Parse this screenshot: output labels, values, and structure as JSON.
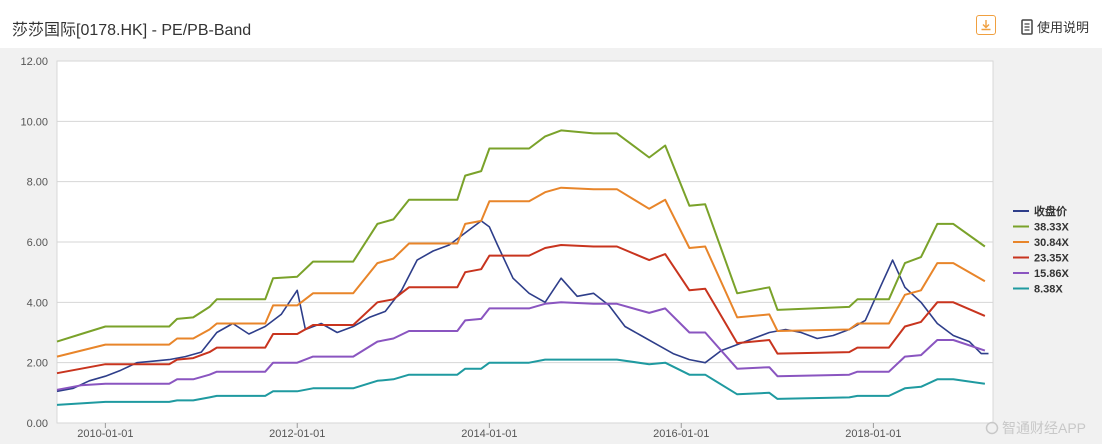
{
  "header": {
    "title": "莎莎国际[0178.HK] - PE/PB-Band",
    "help_label": "使用说明"
  },
  "watermark": "智通财经APP",
  "icons": {
    "download": "download-icon",
    "help": "document-icon"
  },
  "chart_data": {
    "type": "line",
    "title": "",
    "xlabel": "",
    "ylabel": "",
    "ylim": [
      0,
      12
    ],
    "yticks": [
      "0.00",
      "2.00",
      "4.00",
      "6.00",
      "8.00",
      "10.00",
      "12.00"
    ],
    "xrange": [
      "2009-07-01",
      "2019-04-01"
    ],
    "xticks": [
      "2010-01-01",
      "2012-01-01",
      "2014-01-01",
      "2016-01-01",
      "2018-01-01"
    ],
    "grid": true,
    "legend_position": "right",
    "series": [
      {
        "name": "收盘价",
        "color": "#2e3e8a",
        "points": [
          [
            "2009-07-01",
            1.05
          ],
          [
            "2009-09-01",
            1.15
          ],
          [
            "2009-11-01",
            1.4
          ],
          [
            "2010-01-01",
            1.55
          ],
          [
            "2010-03-01",
            1.75
          ],
          [
            "2010-05-01",
            2.0
          ],
          [
            "2010-07-01",
            2.05
          ],
          [
            "2010-09-01",
            2.1
          ],
          [
            "2010-11-01",
            2.2
          ],
          [
            "2011-01-01",
            2.35
          ],
          [
            "2011-03-01",
            3.0
          ],
          [
            "2011-05-01",
            3.3
          ],
          [
            "2011-07-01",
            2.95
          ],
          [
            "2011-09-01",
            3.2
          ],
          [
            "2011-11-01",
            3.6
          ],
          [
            "2012-01-01",
            4.4
          ],
          [
            "2012-02-01",
            3.1
          ],
          [
            "2012-04-01",
            3.3
          ],
          [
            "2012-06-01",
            3.0
          ],
          [
            "2012-08-01",
            3.2
          ],
          [
            "2012-10-01",
            3.5
          ],
          [
            "2012-12-01",
            3.7
          ],
          [
            "2013-02-01",
            4.4
          ],
          [
            "2013-04-01",
            5.4
          ],
          [
            "2013-06-01",
            5.7
          ],
          [
            "2013-08-01",
            5.9
          ],
          [
            "2013-10-01",
            6.3
          ],
          [
            "2013-12-01",
            6.7
          ],
          [
            "2014-01-01",
            6.5
          ],
          [
            "2014-02-01",
            5.9
          ],
          [
            "2014-04-01",
            4.8
          ],
          [
            "2014-06-01",
            4.3
          ],
          [
            "2014-08-01",
            4.0
          ],
          [
            "2014-10-01",
            4.8
          ],
          [
            "2014-12-01",
            4.2
          ],
          [
            "2015-02-01",
            4.3
          ],
          [
            "2015-04-01",
            3.9
          ],
          [
            "2015-06-01",
            3.2
          ],
          [
            "2015-08-01",
            2.9
          ],
          [
            "2015-10-01",
            2.6
          ],
          [
            "2015-12-01",
            2.3
          ],
          [
            "2016-02-01",
            2.1
          ],
          [
            "2016-04-01",
            2.0
          ],
          [
            "2016-06-01",
            2.4
          ],
          [
            "2016-08-01",
            2.6
          ],
          [
            "2016-10-01",
            2.8
          ],
          [
            "2016-12-01",
            3.0
          ],
          [
            "2017-02-01",
            3.1
          ],
          [
            "2017-04-01",
            3.0
          ],
          [
            "2017-06-01",
            2.8
          ],
          [
            "2017-08-01",
            2.9
          ],
          [
            "2017-10-01",
            3.1
          ],
          [
            "2017-12-01",
            3.4
          ],
          [
            "2018-02-01",
            4.6
          ],
          [
            "2018-03-15",
            5.4
          ],
          [
            "2018-05-01",
            4.5
          ],
          [
            "2018-07-01",
            4.0
          ],
          [
            "2018-09-01",
            3.3
          ],
          [
            "2018-11-01",
            2.9
          ],
          [
            "2019-01-01",
            2.7
          ],
          [
            "2019-02-15",
            2.3
          ],
          [
            "2019-03-15",
            2.3
          ]
        ]
      },
      {
        "name": "38.33X",
        "color": "#7aa22a",
        "points": [
          [
            "2009-07-01",
            2.7
          ],
          [
            "2009-10-01",
            2.95
          ],
          [
            "2010-01-01",
            3.2
          ],
          [
            "2010-09-01",
            3.2
          ],
          [
            "2010-10-01",
            3.45
          ],
          [
            "2010-12-01",
            3.5
          ],
          [
            "2011-02-01",
            3.85
          ],
          [
            "2011-03-01",
            4.1
          ],
          [
            "2011-09-01",
            4.1
          ],
          [
            "2011-10-01",
            4.8
          ],
          [
            "2012-01-01",
            4.85
          ],
          [
            "2012-03-01",
            5.35
          ],
          [
            "2012-08-01",
            5.35
          ],
          [
            "2012-11-01",
            6.6
          ],
          [
            "2013-01-01",
            6.75
          ],
          [
            "2013-03-01",
            7.4
          ],
          [
            "2013-09-01",
            7.4
          ],
          [
            "2013-10-01",
            8.2
          ],
          [
            "2013-12-01",
            8.35
          ],
          [
            "2014-01-01",
            9.1
          ],
          [
            "2014-06-01",
            9.1
          ],
          [
            "2014-08-01",
            9.5
          ],
          [
            "2014-10-01",
            9.7
          ],
          [
            "2015-02-01",
            9.6
          ],
          [
            "2015-05-01",
            9.6
          ],
          [
            "2015-09-01",
            8.8
          ],
          [
            "2015-11-01",
            9.2
          ],
          [
            "2016-02-01",
            7.2
          ],
          [
            "2016-04-01",
            7.25
          ],
          [
            "2016-08-01",
            4.3
          ],
          [
            "2016-12-01",
            4.5
          ],
          [
            "2017-01-01",
            3.75
          ],
          [
            "2017-10-01",
            3.85
          ],
          [
            "2017-11-01",
            4.1
          ],
          [
            "2018-03-01",
            4.1
          ],
          [
            "2018-05-01",
            5.3
          ],
          [
            "2018-07-01",
            5.5
          ],
          [
            "2018-09-01",
            6.6
          ],
          [
            "2018-11-01",
            6.6
          ],
          [
            "2019-03-01",
            5.85
          ]
        ]
      },
      {
        "name": "30.84X",
        "color": "#e8852a",
        "points": [
          [
            "2009-07-01",
            2.2
          ],
          [
            "2009-10-01",
            2.4
          ],
          [
            "2010-01-01",
            2.6
          ],
          [
            "2010-09-01",
            2.6
          ],
          [
            "2010-10-01",
            2.8
          ],
          [
            "2010-12-01",
            2.8
          ],
          [
            "2011-02-01",
            3.1
          ],
          [
            "2011-03-01",
            3.3
          ],
          [
            "2011-09-01",
            3.3
          ],
          [
            "2011-10-01",
            3.9
          ],
          [
            "2012-01-01",
            3.9
          ],
          [
            "2012-03-01",
            4.3
          ],
          [
            "2012-08-01",
            4.3
          ],
          [
            "2012-11-01",
            5.3
          ],
          [
            "2013-01-01",
            5.45
          ],
          [
            "2013-03-01",
            5.95
          ],
          [
            "2013-09-01",
            5.95
          ],
          [
            "2013-10-01",
            6.6
          ],
          [
            "2013-12-01",
            6.7
          ],
          [
            "2014-01-01",
            7.35
          ],
          [
            "2014-06-01",
            7.35
          ],
          [
            "2014-08-01",
            7.65
          ],
          [
            "2014-10-01",
            7.8
          ],
          [
            "2015-02-01",
            7.75
          ],
          [
            "2015-05-01",
            7.75
          ],
          [
            "2015-09-01",
            7.1
          ],
          [
            "2015-11-01",
            7.4
          ],
          [
            "2016-02-01",
            5.8
          ],
          [
            "2016-04-01",
            5.85
          ],
          [
            "2016-08-01",
            3.5
          ],
          [
            "2016-12-01",
            3.6
          ],
          [
            "2017-01-01",
            3.05
          ],
          [
            "2017-10-01",
            3.1
          ],
          [
            "2017-11-01",
            3.3
          ],
          [
            "2018-03-01",
            3.3
          ],
          [
            "2018-05-01",
            4.25
          ],
          [
            "2018-07-01",
            4.4
          ],
          [
            "2018-09-01",
            5.3
          ],
          [
            "2018-11-01",
            5.3
          ],
          [
            "2019-03-01",
            4.7
          ]
        ]
      },
      {
        "name": "23.35X",
        "color": "#c8341e",
        "points": [
          [
            "2009-07-01",
            1.65
          ],
          [
            "2009-10-01",
            1.8
          ],
          [
            "2010-01-01",
            1.95
          ],
          [
            "2010-09-01",
            1.95
          ],
          [
            "2010-10-01",
            2.1
          ],
          [
            "2010-12-01",
            2.15
          ],
          [
            "2011-02-01",
            2.35
          ],
          [
            "2011-03-01",
            2.5
          ],
          [
            "2011-09-01",
            2.5
          ],
          [
            "2011-10-01",
            2.95
          ],
          [
            "2012-01-01",
            2.95
          ],
          [
            "2012-03-01",
            3.25
          ],
          [
            "2012-08-01",
            3.25
          ],
          [
            "2012-11-01",
            4.0
          ],
          [
            "2013-01-01",
            4.1
          ],
          [
            "2013-03-01",
            4.5
          ],
          [
            "2013-09-01",
            4.5
          ],
          [
            "2013-10-01",
            5.0
          ],
          [
            "2013-12-01",
            5.1
          ],
          [
            "2014-01-01",
            5.55
          ],
          [
            "2014-06-01",
            5.55
          ],
          [
            "2014-08-01",
            5.8
          ],
          [
            "2014-10-01",
            5.9
          ],
          [
            "2015-02-01",
            5.85
          ],
          [
            "2015-05-01",
            5.85
          ],
          [
            "2015-09-01",
            5.4
          ],
          [
            "2015-11-01",
            5.6
          ],
          [
            "2016-02-01",
            4.4
          ],
          [
            "2016-04-01",
            4.45
          ],
          [
            "2016-08-01",
            2.65
          ],
          [
            "2016-12-01",
            2.75
          ],
          [
            "2017-01-01",
            2.3
          ],
          [
            "2017-10-01",
            2.35
          ],
          [
            "2017-11-01",
            2.5
          ],
          [
            "2018-03-01",
            2.5
          ],
          [
            "2018-05-01",
            3.2
          ],
          [
            "2018-07-01",
            3.35
          ],
          [
            "2018-09-01",
            4.0
          ],
          [
            "2018-11-01",
            4.0
          ],
          [
            "2019-03-01",
            3.55
          ]
        ]
      },
      {
        "name": "15.86X",
        "color": "#8a55c0",
        "points": [
          [
            "2009-07-01",
            1.1
          ],
          [
            "2009-10-01",
            1.25
          ],
          [
            "2010-01-01",
            1.3
          ],
          [
            "2010-09-01",
            1.3
          ],
          [
            "2010-10-01",
            1.45
          ],
          [
            "2010-12-01",
            1.45
          ],
          [
            "2011-02-01",
            1.6
          ],
          [
            "2011-03-01",
            1.7
          ],
          [
            "2011-09-01",
            1.7
          ],
          [
            "2011-10-01",
            2.0
          ],
          [
            "2012-01-01",
            2.0
          ],
          [
            "2012-03-01",
            2.2
          ],
          [
            "2012-08-01",
            2.2
          ],
          [
            "2012-11-01",
            2.7
          ],
          [
            "2013-01-01",
            2.8
          ],
          [
            "2013-03-01",
            3.05
          ],
          [
            "2013-09-01",
            3.05
          ],
          [
            "2013-10-01",
            3.4
          ],
          [
            "2013-12-01",
            3.45
          ],
          [
            "2014-01-01",
            3.8
          ],
          [
            "2014-06-01",
            3.8
          ],
          [
            "2014-08-01",
            3.95
          ],
          [
            "2014-10-01",
            4.0
          ],
          [
            "2015-02-01",
            3.95
          ],
          [
            "2015-05-01",
            3.95
          ],
          [
            "2015-09-01",
            3.65
          ],
          [
            "2015-11-01",
            3.8
          ],
          [
            "2016-02-01",
            3.0
          ],
          [
            "2016-04-01",
            3.0
          ],
          [
            "2016-08-01",
            1.8
          ],
          [
            "2016-12-01",
            1.85
          ],
          [
            "2017-01-01",
            1.55
          ],
          [
            "2017-10-01",
            1.6
          ],
          [
            "2017-11-01",
            1.7
          ],
          [
            "2018-03-01",
            1.7
          ],
          [
            "2018-05-01",
            2.2
          ],
          [
            "2018-07-01",
            2.25
          ],
          [
            "2018-09-01",
            2.75
          ],
          [
            "2018-11-01",
            2.75
          ],
          [
            "2019-03-01",
            2.4
          ]
        ]
      },
      {
        "name": "8.38X",
        "color": "#1f9aa0",
        "points": [
          [
            "2009-07-01",
            0.6
          ],
          [
            "2009-10-01",
            0.65
          ],
          [
            "2010-01-01",
            0.7
          ],
          [
            "2010-09-01",
            0.7
          ],
          [
            "2010-10-01",
            0.75
          ],
          [
            "2010-12-01",
            0.75
          ],
          [
            "2011-02-01",
            0.85
          ],
          [
            "2011-03-01",
            0.9
          ],
          [
            "2011-09-01",
            0.9
          ],
          [
            "2011-10-01",
            1.05
          ],
          [
            "2012-01-01",
            1.05
          ],
          [
            "2012-03-01",
            1.15
          ],
          [
            "2012-08-01",
            1.15
          ],
          [
            "2012-11-01",
            1.4
          ],
          [
            "2013-01-01",
            1.45
          ],
          [
            "2013-03-01",
            1.6
          ],
          [
            "2013-09-01",
            1.6
          ],
          [
            "2013-10-01",
            1.8
          ],
          [
            "2013-12-01",
            1.8
          ],
          [
            "2014-01-01",
            2.0
          ],
          [
            "2014-06-01",
            2.0
          ],
          [
            "2014-08-01",
            2.1
          ],
          [
            "2014-10-01",
            2.1
          ],
          [
            "2015-02-01",
            2.1
          ],
          [
            "2015-05-01",
            2.1
          ],
          [
            "2015-09-01",
            1.95
          ],
          [
            "2015-11-01",
            2.0
          ],
          [
            "2016-02-01",
            1.6
          ],
          [
            "2016-04-01",
            1.6
          ],
          [
            "2016-08-01",
            0.95
          ],
          [
            "2016-12-01",
            1.0
          ],
          [
            "2017-01-01",
            0.8
          ],
          [
            "2017-10-01",
            0.85
          ],
          [
            "2017-11-01",
            0.9
          ],
          [
            "2018-03-01",
            0.9
          ],
          [
            "2018-05-01",
            1.15
          ],
          [
            "2018-07-01",
            1.2
          ],
          [
            "2018-09-01",
            1.45
          ],
          [
            "2018-11-01",
            1.45
          ],
          [
            "2019-03-01",
            1.3
          ]
        ]
      }
    ]
  }
}
